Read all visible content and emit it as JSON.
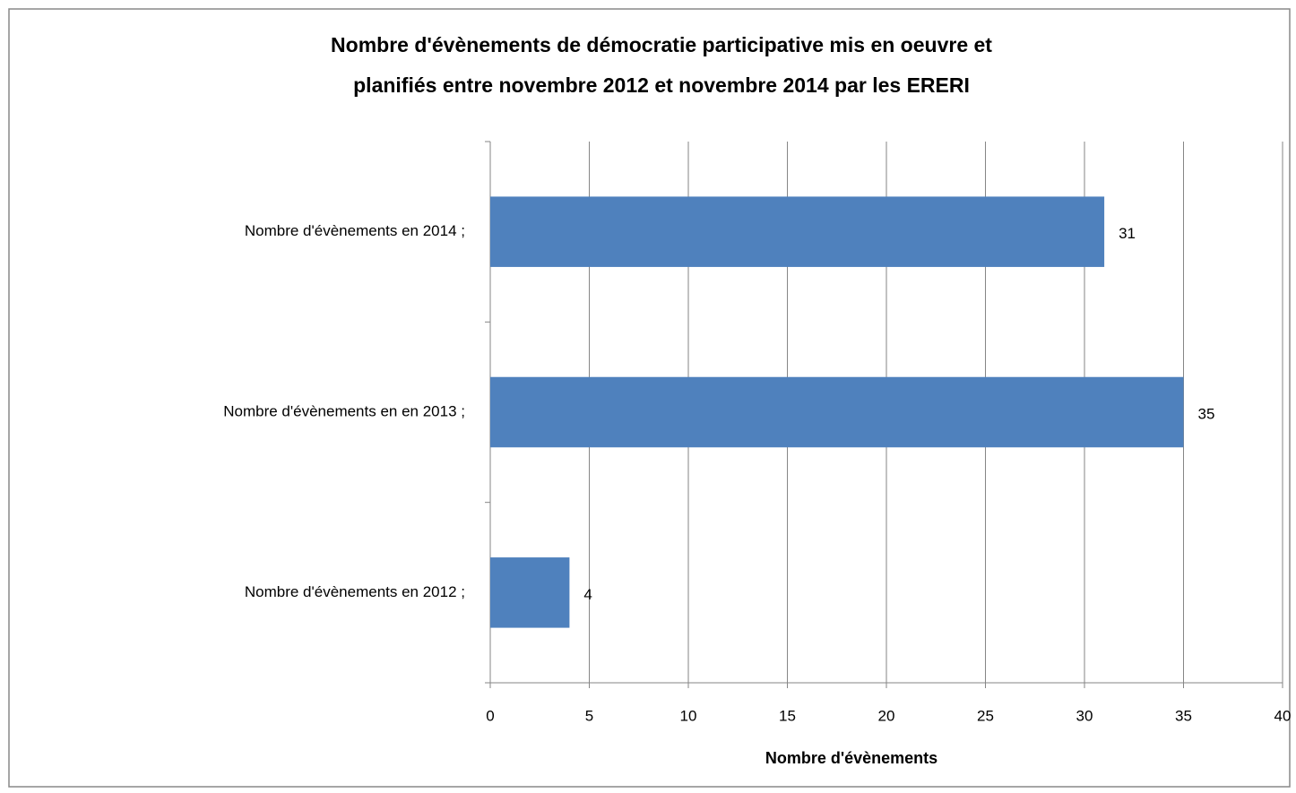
{
  "chart_data": {
    "type": "hbar",
    "title": [
      "Nombre d'évènements de démocratie participative mis en oeuvre et",
      "planifiés entre novembre 2012 et novembre 2014 par les ERERI"
    ],
    "xlabel": "Nombre d'évènements",
    "categories": [
      "Nombre d'évènements en 2012 ;",
      "Nombre d'évènements en en 2013 ;",
      "Nombre d'évènements en 2014 ;"
    ],
    "values": [
      4,
      35,
      31
    ],
    "color": "#4f81bd",
    "xlim": [
      0,
      40
    ],
    "xticks": [
      0,
      5,
      10,
      15,
      20,
      25,
      30,
      35,
      40
    ],
    "grid": true
  }
}
